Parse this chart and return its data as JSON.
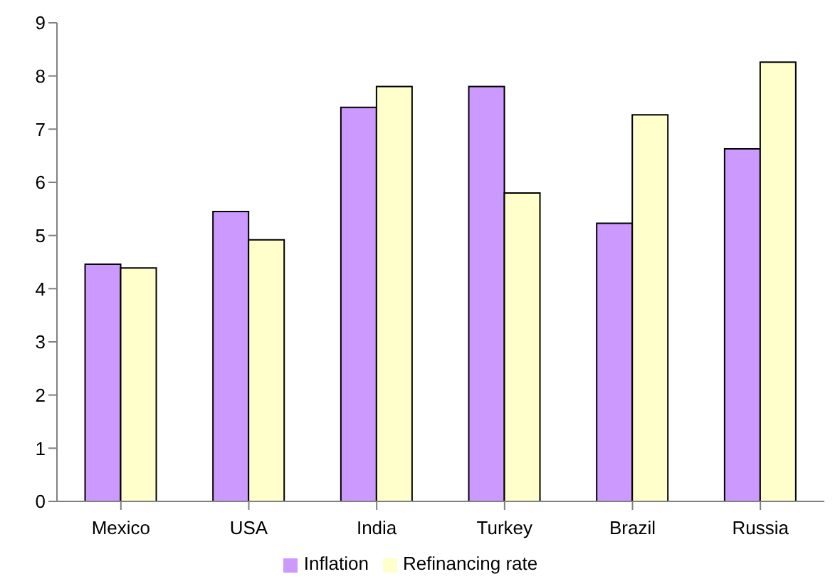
{
  "chart_data": {
    "type": "bar",
    "categories": [
      "Mexico",
      "USA",
      "India",
      "Turkey",
      "Brazil",
      "Russia"
    ],
    "series": [
      {
        "name": "Inflation",
        "color": "#cc99ff",
        "values": [
          4.46,
          5.45,
          7.41,
          7.8,
          5.23,
          6.63
        ]
      },
      {
        "name": "Refinancing rate",
        "color": "#ffffcc",
        "values": [
          4.39,
          4.92,
          7.8,
          5.8,
          7.27,
          8.26
        ]
      }
    ],
    "ylim": [
      0,
      9
    ],
    "yticks": [
      0,
      1,
      2,
      3,
      4,
      5,
      6,
      7,
      8,
      9
    ],
    "grid": false,
    "legend": "bottom"
  }
}
